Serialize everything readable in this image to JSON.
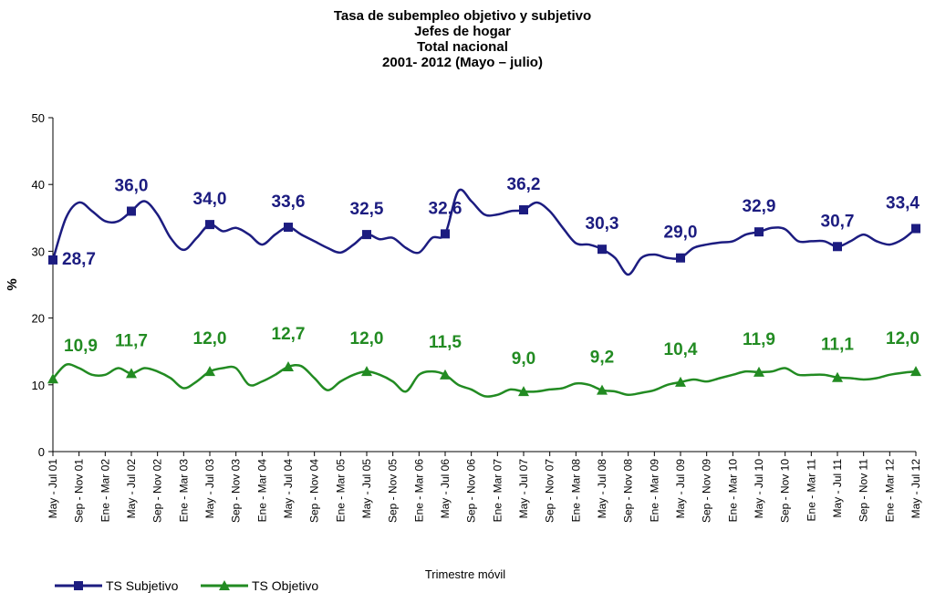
{
  "chart_data": {
    "type": "line",
    "title": "Tasa de subempleo objetivo y subjetivo",
    "subtitle": [
      "Jefes de hogar",
      "Total nacional",
      "2001- 2012 (Mayo – julio)"
    ],
    "x_label": "Trimestre móvil",
    "y_label": "%",
    "categories": [
      "May - Jul 01",
      null,
      "Sep - Nov 01",
      null,
      "Ene - Mar 02",
      null,
      "May - Jul 02",
      null,
      "Sep - Nov 02",
      null,
      "Ene - Mar 03",
      null,
      "May - Jul 03",
      null,
      "Sep - Nov 03",
      null,
      "Ene - Mar 04",
      null,
      "May - Jul 04",
      null,
      "Sep - Nov 04",
      null,
      "Ene - Mar 05",
      null,
      "May - Jul 05",
      null,
      "Sep - Nov 05",
      null,
      "Ene - Mar 06",
      null,
      "May - Jul 06",
      null,
      "Sep - Nov 06",
      null,
      "Ene - Mar 07",
      null,
      "May - Jul 07",
      null,
      "Sep - Nov 07",
      null,
      "Ene - Mar 08",
      null,
      "May - Jul 08",
      null,
      "Sep - Nov 08",
      null,
      "Ene - Mar 09",
      null,
      "May - Jul 09",
      null,
      "Sep - Nov 09",
      null,
      "Ene - Mar 10",
      null,
      "May - Jul 10",
      null,
      "Sep - Nov 10",
      null,
      "Ene - Mar 11",
      null,
      "May - Jul 11",
      null,
      "Sep - Nov 11",
      null,
      "Ene - Mar 12",
      null,
      "May - Jul 12"
    ],
    "series": [
      {
        "name": "TS Subjetivo",
        "color": "#1c1c80",
        "marker": "square",
        "values": [
          28.7,
          35,
          37.3,
          36,
          34.5,
          34.5,
          36.0,
          37.5,
          35.5,
          32,
          30.2,
          32,
          34.0,
          33,
          33.5,
          32.5,
          31,
          32.5,
          33.6,
          32.5,
          31.5,
          30.5,
          29.8,
          31,
          32.5,
          31.8,
          32,
          30.5,
          29.8,
          32,
          32.6,
          39,
          37.5,
          35.5,
          35.5,
          36,
          36.2,
          37.3,
          36,
          33.5,
          31.2,
          31,
          30.3,
          29,
          26.5,
          29,
          29.5,
          29,
          29.0,
          30.5,
          31,
          31.3,
          31.5,
          32.5,
          32.9,
          33.5,
          33.3,
          31.5,
          31.5,
          31.5,
          30.7,
          31.5,
          32.5,
          31.5,
          31,
          31.8,
          33.4
        ],
        "value_labels": [
          "28,7",
          null,
          null,
          null,
          null,
          null,
          "36,0",
          null,
          null,
          null,
          null,
          null,
          "34,0",
          null,
          null,
          null,
          null,
          null,
          "33,6",
          null,
          null,
          null,
          null,
          null,
          "32,5",
          null,
          null,
          null,
          null,
          null,
          "32,6",
          null,
          null,
          null,
          null,
          null,
          "36,2",
          null,
          null,
          null,
          null,
          null,
          "30,3",
          null,
          null,
          null,
          null,
          null,
          "29,0",
          null,
          null,
          null,
          null,
          null,
          "32,9",
          null,
          null,
          null,
          null,
          null,
          "30,7",
          null,
          null,
          null,
          null,
          null,
          "33,4"
        ]
      },
      {
        "name": "TS Objetivo",
        "color": "#228b22",
        "marker": "triangle",
        "values": [
          10.9,
          13,
          12.5,
          11.5,
          11.5,
          12.5,
          11.7,
          12.5,
          12,
          11,
          9.5,
          10.5,
          12.0,
          12.5,
          12.5,
          10,
          10.5,
          11.5,
          12.7,
          12.8,
          11,
          9.2,
          10.5,
          11.5,
          12.0,
          11.5,
          10.5,
          9,
          11.5,
          12,
          11.5,
          10,
          9.3,
          8.3,
          8.5,
          9.3,
          9.0,
          9,
          9.3,
          9.5,
          10.2,
          10,
          9.2,
          9,
          8.5,
          8.8,
          9.2,
          10,
          10.4,
          10.8,
          10.5,
          11,
          11.5,
          12,
          11.9,
          12,
          12.5,
          11.5,
          11.5,
          11.5,
          11.1,
          11,
          10.8,
          11,
          11.5,
          11.8,
          12.0
        ],
        "value_labels": [
          "10,9",
          null,
          null,
          null,
          null,
          null,
          "11,7",
          null,
          null,
          null,
          null,
          null,
          "12,0",
          null,
          null,
          null,
          null,
          null,
          "12,7",
          null,
          null,
          null,
          null,
          null,
          "12,0",
          null,
          null,
          null,
          null,
          null,
          "11,5",
          null,
          null,
          null,
          null,
          null,
          "9,0",
          null,
          null,
          null,
          null,
          null,
          "9,2",
          null,
          null,
          null,
          null,
          null,
          "10,4",
          null,
          null,
          null,
          null,
          null,
          "11,9",
          null,
          null,
          null,
          null,
          null,
          "11,1",
          null,
          null,
          null,
          null,
          null,
          "12,0"
        ]
      }
    ],
    "ylim": [
      0,
      50
    ],
    "yticks": [
      0,
      10,
      20,
      30,
      40,
      50
    ],
    "grid": false,
    "smooth": true,
    "legend": "bottom-left"
  }
}
